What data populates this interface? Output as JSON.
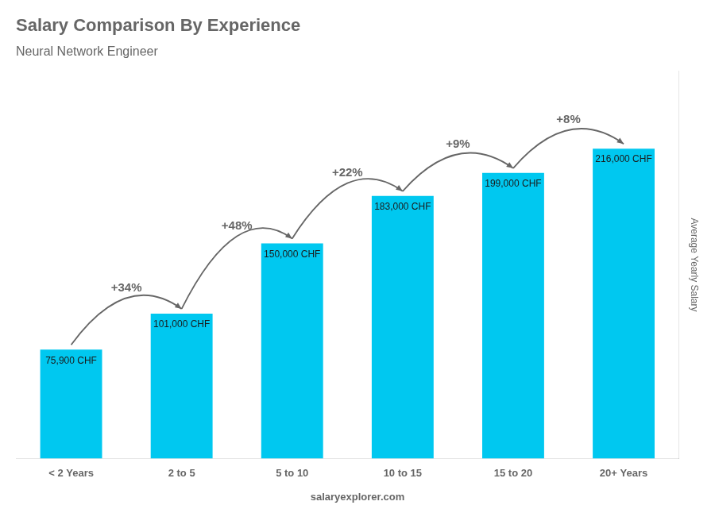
{
  "chart_data": {
    "type": "bar",
    "title": "Salary Comparison By Experience",
    "subtitle": "Neural Network Engineer",
    "y_label": "Average Yearly Salary",
    "categories": [
      "< 2 Years",
      "2 to 5",
      "5 to 10",
      "10 to 15",
      "15 to 20",
      "20+ Years"
    ],
    "values": [
      75900,
      101000,
      150000,
      183000,
      199000,
      216000
    ],
    "value_labels": [
      "75,900 CHF",
      "101,000 CHF",
      "150,000 CHF",
      "183,000 CHF",
      "199,000 CHF",
      "216,000 CHF"
    ],
    "data_labels": true,
    "color": "#00c8f0",
    "ylim": [
      0,
      270000
    ],
    "tick_labels": "x",
    "grid": false,
    "annotations": [
      "+34%",
      "+48%",
      "+22%",
      "+9%",
      "+8%"
    ],
    "footer": "salaryexplorer.com"
  }
}
